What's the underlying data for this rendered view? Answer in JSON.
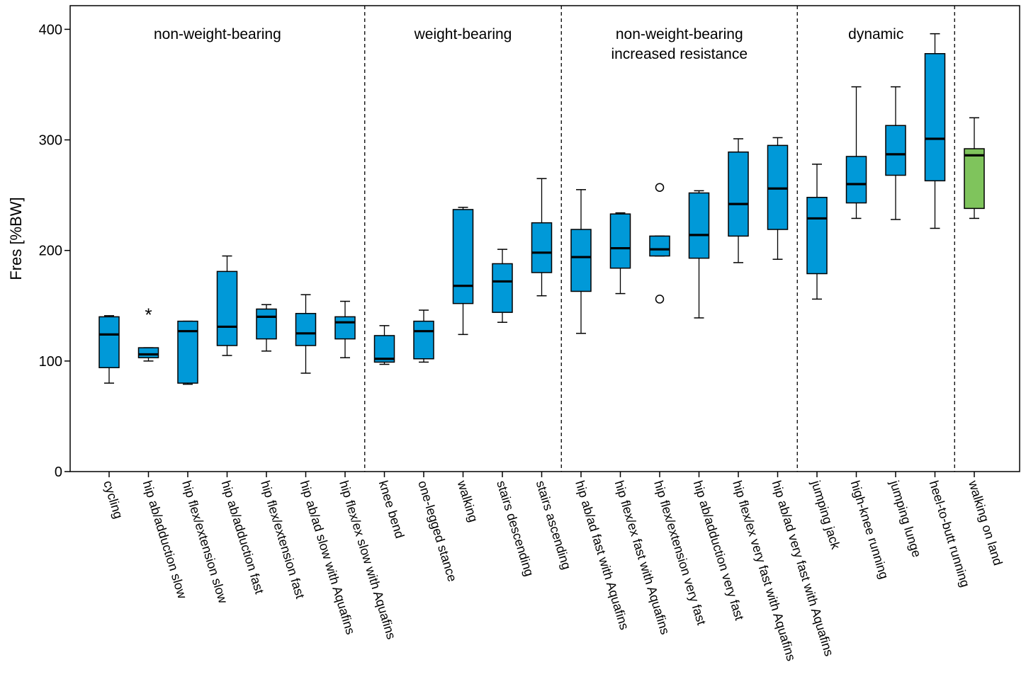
{
  "chart_data": {
    "type": "boxplot",
    "ylabel": "Fres [%BW]",
    "ylim": [
      0,
      420
    ],
    "yticks": [
      0,
      100,
      200,
      300,
      400
    ],
    "grid": false,
    "legend": "none",
    "colors": {
      "blue": "#0099d8",
      "green": "#7fc45c"
    },
    "groups": [
      {
        "label_lines": [
          "non-weight-bearing"
        ],
        "start": 0,
        "end": 6
      },
      {
        "label_lines": [
          "weight-bearing"
        ],
        "start": 7,
        "end": 11
      },
      {
        "label_lines": [
          "non-weight-bearing",
          "increased resistance"
        ],
        "start": 12,
        "end": 17
      },
      {
        "label_lines": [
          "dynamic"
        ],
        "start": 18,
        "end": 21
      },
      {
        "label_lines": [],
        "start": 22,
        "end": 22
      }
    ],
    "categories": [
      "cycling",
      "hip ab/adduction slow",
      "hip flex/extension slow",
      "hip ab/adduction fast",
      "hip flex/extension fast",
      "hip ab/ad slow with Aquafins",
      "hip flex/ex slow with Aquafins",
      "knee bend",
      "one-legged stance",
      "walking",
      "stairs descending",
      "stairs ascending",
      "hip ab/ad fast with Aquafins",
      "hip flex/ex fast with Aquafins",
      "hip flex/extension very fast",
      "hip ab/adduction very fast",
      "hip flex/ex very fast with Aquafins",
      "hip ab/ad very fast with Aquafins",
      "jumping jack",
      "high-knee running",
      "jumping lunge",
      "heel-to-butt running",
      "walking on land"
    ],
    "boxes": [
      {
        "min": 80,
        "q1": 94,
        "median": 124,
        "q3": 140,
        "max": 141,
        "color": "blue",
        "outliers": [],
        "extremes": []
      },
      {
        "min": 100,
        "q1": 103,
        "median": 106,
        "q3": 112,
        "max": 112,
        "color": "blue",
        "outliers": [],
        "extremes": [
          145
        ]
      },
      {
        "min": 79,
        "q1": 80,
        "median": 127,
        "q3": 136,
        "max": 136,
        "color": "blue",
        "outliers": [],
        "extremes": []
      },
      {
        "min": 105,
        "q1": 114,
        "median": 131,
        "q3": 181,
        "max": 195,
        "color": "blue",
        "outliers": [],
        "extremes": []
      },
      {
        "min": 109,
        "q1": 120,
        "median": 140,
        "q3": 147,
        "max": 151,
        "color": "blue",
        "outliers": [],
        "extremes": []
      },
      {
        "min": 89,
        "q1": 114,
        "median": 125,
        "q3": 143,
        "max": 160,
        "color": "blue",
        "outliers": [],
        "extremes": []
      },
      {
        "min": 103,
        "q1": 120,
        "median": 135,
        "q3": 140,
        "max": 154,
        "color": "blue",
        "outliers": [],
        "extremes": []
      },
      {
        "min": 97,
        "q1": 99,
        "median": 102,
        "q3": 123,
        "max": 132,
        "color": "blue",
        "outliers": [],
        "extremes": []
      },
      {
        "min": 99,
        "q1": 102,
        "median": 127,
        "q3": 136,
        "max": 146,
        "color": "blue",
        "outliers": [],
        "extremes": []
      },
      {
        "min": 124,
        "q1": 152,
        "median": 168,
        "q3": 237,
        "max": 239,
        "color": "blue",
        "outliers": [],
        "extremes": []
      },
      {
        "min": 135,
        "q1": 144,
        "median": 172,
        "q3": 188,
        "max": 201,
        "color": "blue",
        "outliers": [],
        "extremes": []
      },
      {
        "min": 159,
        "q1": 180,
        "median": 198,
        "q3": 225,
        "max": 265,
        "color": "blue",
        "outliers": [],
        "extremes": []
      },
      {
        "min": 125,
        "q1": 163,
        "median": 194,
        "q3": 219,
        "max": 255,
        "color": "blue",
        "outliers": [],
        "extremes": []
      },
      {
        "min": 161,
        "q1": 184,
        "median": 202,
        "q3": 233,
        "max": 234,
        "color": "blue",
        "outliers": [],
        "extremes": []
      },
      {
        "min": 195,
        "q1": 195,
        "median": 201,
        "q3": 213,
        "max": 213,
        "color": "blue",
        "outliers": [
          156,
          257
        ],
        "extremes": []
      },
      {
        "min": 139,
        "q1": 193,
        "median": 214,
        "q3": 252,
        "max": 254,
        "color": "blue",
        "outliers": [],
        "extremes": []
      },
      {
        "min": 189,
        "q1": 213,
        "median": 242,
        "q3": 289,
        "max": 301,
        "color": "blue",
        "outliers": [],
        "extremes": []
      },
      {
        "min": 192,
        "q1": 219,
        "median": 256,
        "q3": 295,
        "max": 302,
        "color": "blue",
        "outliers": [],
        "extremes": []
      },
      {
        "min": 156,
        "q1": 179,
        "median": 229,
        "q3": 248,
        "max": 278,
        "color": "blue",
        "outliers": [],
        "extremes": []
      },
      {
        "min": 229,
        "q1": 243,
        "median": 260,
        "q3": 285,
        "max": 348,
        "color": "blue",
        "outliers": [],
        "extremes": []
      },
      {
        "min": 228,
        "q1": 268,
        "median": 287,
        "q3": 313,
        "max": 348,
        "color": "blue",
        "outliers": [],
        "extremes": []
      },
      {
        "min": 220,
        "q1": 263,
        "median": 301,
        "q3": 378,
        "max": 396,
        "color": "blue",
        "outliers": [],
        "extremes": []
      },
      {
        "min": 229,
        "q1": 238,
        "median": 286,
        "q3": 292,
        "max": 320,
        "color": "green",
        "outliers": [],
        "extremes": []
      }
    ]
  }
}
